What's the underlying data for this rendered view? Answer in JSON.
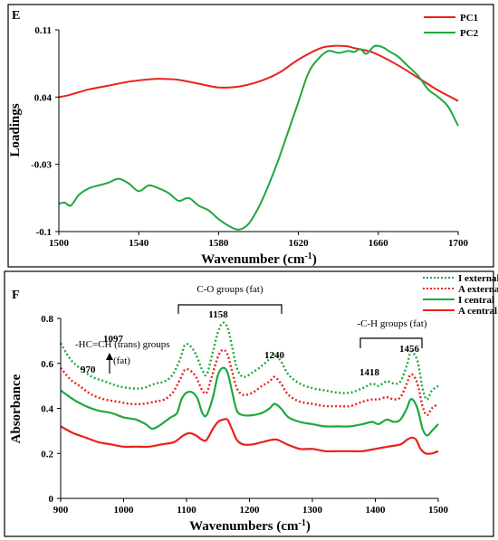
{
  "colors": {
    "red": "#e8221c",
    "green": "#1fa83e",
    "frame": "#000000"
  },
  "chart_data": [
    {
      "type": "line",
      "panel_label": "E",
      "title": "",
      "xlabel": "Wavenumber (cm-1)",
      "xlabel_main": "Wavenumber (cm",
      "xlabel_sup": "-1",
      "xlabel_close": ")",
      "ylabel": "Loadings",
      "xlim": [
        1500,
        1700
      ],
      "ylim": [
        -0.1,
        0.11
      ],
      "x_ticks": [
        "1500",
        "1540",
        "1580",
        "1620",
        "1660",
        "1700"
      ],
      "y_ticks": [
        "0.11",
        "0.04",
        "-0.03",
        "-0.1"
      ],
      "legend_position": "top-right",
      "grid": false,
      "series": [
        {
          "name": "PC1",
          "color": "red",
          "x": [
            1500,
            1505,
            1515,
            1525,
            1535,
            1545,
            1552,
            1560,
            1570,
            1580,
            1590,
            1600,
            1610,
            1620,
            1630,
            1636,
            1644,
            1648,
            1655,
            1660,
            1670,
            1680,
            1690,
            1700
          ],
          "y": [
            0.04,
            0.042,
            0.048,
            0.052,
            0.056,
            0.0585,
            0.059,
            0.058,
            0.054,
            0.05,
            0.051,
            0.056,
            0.065,
            0.079,
            0.09,
            0.093,
            0.093,
            0.091,
            0.088,
            0.084,
            0.073,
            0.06,
            0.047,
            0.036
          ]
        },
        {
          "name": "PC2",
          "color": "green",
          "x": [
            1500,
            1503,
            1506,
            1510,
            1515,
            1520,
            1525,
            1530,
            1535,
            1540,
            1545,
            1550,
            1555,
            1560,
            1565,
            1570,
            1575,
            1580,
            1585,
            1590,
            1595,
            1600,
            1605,
            1610,
            1615,
            1620,
            1625,
            1630,
            1635,
            1640,
            1645,
            1648,
            1651,
            1654,
            1658,
            1662,
            1666,
            1670,
            1675,
            1680,
            1685,
            1690,
            1695,
            1700
          ],
          "y": [
            -0.071,
            -0.07,
            -0.073,
            -0.062,
            -0.055,
            -0.052,
            -0.049,
            -0.045,
            -0.05,
            -0.058,
            -0.052,
            -0.055,
            -0.06,
            -0.068,
            -0.065,
            -0.073,
            -0.078,
            -0.087,
            -0.094,
            -0.098,
            -0.092,
            -0.075,
            -0.052,
            -0.025,
            0.005,
            0.035,
            0.065,
            0.08,
            0.088,
            0.086,
            0.088,
            0.087,
            0.09,
            0.085,
            0.093,
            0.092,
            0.087,
            0.082,
            0.072,
            0.062,
            0.048,
            0.04,
            0.03,
            0.01
          ]
        }
      ]
    },
    {
      "type": "line",
      "panel_label": "F",
      "title": "",
      "xlabel": "Wavenumbers (cm-1)",
      "xlabel_main": "Wavenumbers (cm",
      "xlabel_sup": "-1",
      "xlabel_close": ")",
      "ylabel": "Absorbance",
      "xlim": [
        900,
        1500
      ],
      "ylim": [
        0,
        0.8
      ],
      "x_ticks": [
        "900",
        "1000",
        "1100",
        "1200",
        "1300",
        "1400",
        "1500"
      ],
      "y_ticks": [
        "0.8",
        "0.6",
        "0.4",
        "0.2",
        "0"
      ],
      "legend_position": "top-right",
      "grid": false,
      "series": [
        {
          "name": "I external",
          "color": "green",
          "dashed": true,
          "x": [
            900,
            915,
            930,
            950,
            970,
            990,
            1010,
            1030,
            1050,
            1065,
            1078,
            1090,
            1097,
            1105,
            1115,
            1125,
            1132,
            1140,
            1150,
            1158,
            1165,
            1172,
            1180,
            1190,
            1205,
            1220,
            1232,
            1240,
            1250,
            1262,
            1280,
            1300,
            1320,
            1340,
            1360,
            1380,
            1395,
            1405,
            1418,
            1430,
            1440,
            1450,
            1456,
            1462,
            1468,
            1475,
            1482,
            1490,
            1500
          ],
          "y": [
            0.69,
            0.62,
            0.58,
            0.54,
            0.52,
            0.5,
            0.49,
            0.49,
            0.51,
            0.52,
            0.55,
            0.62,
            0.68,
            0.68,
            0.64,
            0.57,
            0.55,
            0.63,
            0.74,
            0.78,
            0.76,
            0.68,
            0.58,
            0.54,
            0.56,
            0.59,
            0.62,
            0.64,
            0.61,
            0.55,
            0.51,
            0.49,
            0.48,
            0.47,
            0.47,
            0.49,
            0.51,
            0.5,
            0.52,
            0.51,
            0.52,
            0.59,
            0.65,
            0.64,
            0.6,
            0.49,
            0.44,
            0.48,
            0.5
          ]
        },
        {
          "name": "A external",
          "color": "red",
          "dashed": true,
          "x": [
            900,
            915,
            930,
            950,
            970,
            990,
            1010,
            1030,
            1050,
            1065,
            1078,
            1090,
            1097,
            1105,
            1115,
            1125,
            1132,
            1140,
            1150,
            1158,
            1165,
            1172,
            1180,
            1190,
            1205,
            1220,
            1232,
            1240,
            1250,
            1262,
            1280,
            1300,
            1320,
            1340,
            1360,
            1380,
            1395,
            1405,
            1418,
            1430,
            1440,
            1450,
            1456,
            1462,
            1468,
            1475,
            1482,
            1490,
            1500
          ],
          "y": [
            0.58,
            0.53,
            0.5,
            0.46,
            0.44,
            0.43,
            0.42,
            0.42,
            0.43,
            0.44,
            0.47,
            0.53,
            0.57,
            0.57,
            0.54,
            0.48,
            0.47,
            0.54,
            0.63,
            0.66,
            0.64,
            0.57,
            0.49,
            0.46,
            0.47,
            0.5,
            0.52,
            0.54,
            0.51,
            0.46,
            0.43,
            0.42,
            0.41,
            0.41,
            0.41,
            0.43,
            0.44,
            0.44,
            0.45,
            0.44,
            0.45,
            0.51,
            0.55,
            0.54,
            0.5,
            0.41,
            0.37,
            0.4,
            0.42
          ]
        },
        {
          "name": "I central",
          "color": "green",
          "dashed": false,
          "x": [
            900,
            920,
            940,
            960,
            980,
            1000,
            1020,
            1035,
            1045,
            1055,
            1065,
            1075,
            1085,
            1092,
            1100,
            1110,
            1118,
            1125,
            1132,
            1142,
            1150,
            1158,
            1165,
            1172,
            1180,
            1190,
            1205,
            1220,
            1232,
            1240,
            1250,
            1262,
            1280,
            1300,
            1320,
            1340,
            1360,
            1380,
            1395,
            1405,
            1418,
            1430,
            1440,
            1450,
            1456,
            1462,
            1468,
            1475,
            1482,
            1490,
            1500
          ],
          "y": [
            0.48,
            0.44,
            0.41,
            0.39,
            0.38,
            0.36,
            0.35,
            0.33,
            0.31,
            0.32,
            0.34,
            0.36,
            0.38,
            0.44,
            0.47,
            0.47,
            0.44,
            0.38,
            0.37,
            0.45,
            0.55,
            0.58,
            0.56,
            0.48,
            0.39,
            0.37,
            0.37,
            0.38,
            0.4,
            0.42,
            0.4,
            0.36,
            0.34,
            0.33,
            0.32,
            0.32,
            0.32,
            0.33,
            0.34,
            0.33,
            0.35,
            0.34,
            0.35,
            0.4,
            0.44,
            0.43,
            0.39,
            0.31,
            0.28,
            0.3,
            0.33
          ]
        },
        {
          "name": "A central",
          "color": "red",
          "dashed": false,
          "x": [
            900,
            920,
            940,
            960,
            980,
            1000,
            1020,
            1040,
            1060,
            1080,
            1095,
            1105,
            1115,
            1125,
            1132,
            1142,
            1150,
            1158,
            1165,
            1172,
            1180,
            1190,
            1205,
            1220,
            1235,
            1245,
            1260,
            1280,
            1300,
            1320,
            1340,
            1360,
            1380,
            1400,
            1420,
            1440,
            1450,
            1458,
            1465,
            1472,
            1480,
            1490,
            1500
          ],
          "y": [
            0.32,
            0.29,
            0.27,
            0.25,
            0.24,
            0.23,
            0.23,
            0.23,
            0.24,
            0.25,
            0.28,
            0.29,
            0.28,
            0.26,
            0.26,
            0.31,
            0.34,
            0.35,
            0.35,
            0.31,
            0.26,
            0.24,
            0.24,
            0.25,
            0.26,
            0.26,
            0.24,
            0.22,
            0.22,
            0.21,
            0.21,
            0.21,
            0.21,
            0.22,
            0.23,
            0.24,
            0.26,
            0.27,
            0.26,
            0.22,
            0.2,
            0.2,
            0.21
          ]
        }
      ],
      "annotations": {
        "co_groups": "C-O groups (fat)",
        "ch_groups": "-C-H groups (fat)",
        "hc_line1": "-HC=CH (trans) groups",
        "hc_line2": "(fat)",
        "peak_970": "970",
        "peak_1097": "1097",
        "peak_1158": "1158",
        "peak_1240": "1240",
        "peak_1418": "1418",
        "peak_1456": "1456"
      }
    }
  ]
}
